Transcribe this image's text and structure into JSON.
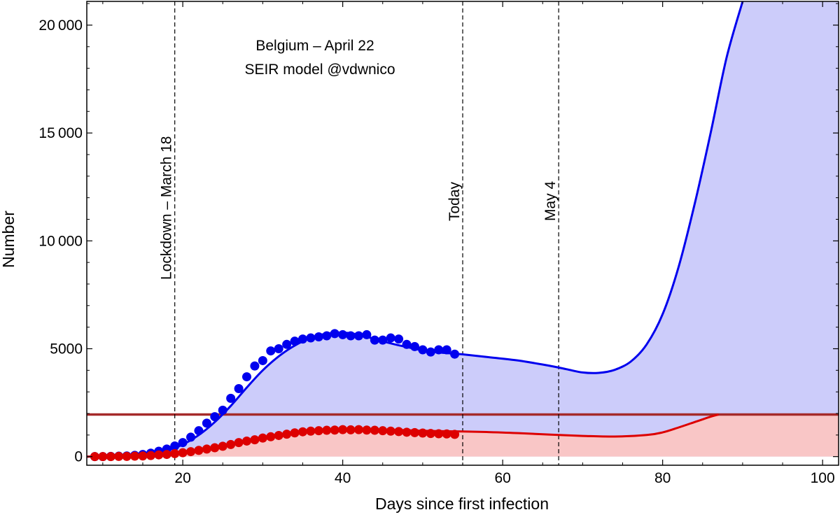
{
  "chart_data": {
    "type": "line",
    "title_lines": [
      "Belgium – April 22",
      "SEIR model @vdwnico"
    ],
    "xlabel": "Days since first infection",
    "ylabel": "Number",
    "xlim": [
      8,
      102
    ],
    "ylim": [
      -400,
      21100
    ],
    "x_ticks": [
      20,
      40,
      60,
      80,
      100
    ],
    "y_ticks": [
      0,
      5000,
      10000,
      15000,
      20000
    ],
    "y_tick_labels": [
      "0",
      "5000",
      "10 000",
      "15 000",
      "20 000"
    ],
    "grid": false,
    "colors": {
      "hospitalized": "#0000ee",
      "hospitalized_fill": "#ccccfa",
      "icu": "#dd0000",
      "icu_fill": "#f9c6c6",
      "capacity_line": "#a52a2a",
      "reference_line": "#000000"
    },
    "reference_lines": [
      {
        "x": 19,
        "label": "Lockdown – March 18"
      },
      {
        "x": 55,
        "label": "Today"
      },
      {
        "x": 67,
        "label": "May 4"
      }
    ],
    "capacity_line": {
      "y": 1950
    },
    "series": [
      {
        "key": "hospitalized",
        "kind": "model",
        "x": [
          8,
          10,
          12,
          14,
          16,
          18,
          20,
          22,
          24,
          26,
          28,
          30,
          32,
          34,
          36,
          38,
          40,
          42,
          44,
          46,
          48,
          50,
          52,
          54,
          55,
          58,
          62,
          66,
          68,
          70,
          72,
          74,
          76,
          78,
          80,
          82,
          84,
          86,
          88,
          90
        ],
        "y": [
          0,
          10,
          30,
          70,
          140,
          280,
          560,
          1000,
          1600,
          2350,
          3200,
          4000,
          4650,
          5150,
          5500,
          5700,
          5750,
          5650,
          5450,
          5250,
          5080,
          4930,
          4830,
          4770,
          4740,
          4620,
          4450,
          4200,
          4050,
          3900,
          3880,
          4020,
          4400,
          5200,
          6600,
          8800,
          11700,
          15000,
          18500,
          21100
        ]
      },
      {
        "key": "hospitalized",
        "kind": "observed",
        "x": [
          9,
          10,
          11,
          12,
          13,
          14,
          15,
          16,
          17,
          18,
          19,
          20,
          21,
          22,
          23,
          24,
          25,
          26,
          27,
          28,
          29,
          30,
          31,
          32,
          33,
          34,
          35,
          36,
          37,
          38,
          39,
          40,
          41,
          42,
          43,
          44,
          45,
          46,
          47,
          48,
          49,
          50,
          51,
          52,
          53,
          54
        ],
        "y": [
          0,
          0,
          10,
          20,
          30,
          60,
          100,
          160,
          250,
          350,
          490,
          650,
          900,
          1200,
          1550,
          1850,
          2150,
          2700,
          3150,
          3700,
          4200,
          4450,
          4900,
          5000,
          5200,
          5350,
          5450,
          5500,
          5550,
          5600,
          5700,
          5650,
          5600,
          5600,
          5650,
          5400,
          5400,
          5500,
          5450,
          5200,
          5100,
          4950,
          4850,
          4950,
          4950,
          4750
        ]
      },
      {
        "key": "icu",
        "kind": "model",
        "x": [
          8,
          10,
          12,
          14,
          16,
          18,
          20,
          22,
          24,
          26,
          28,
          30,
          32,
          34,
          36,
          38,
          40,
          42,
          44,
          46,
          48,
          50,
          52,
          54,
          55,
          58,
          62,
          66,
          70,
          74,
          78,
          80,
          82,
          84,
          86,
          87
        ],
        "y": [
          0,
          5,
          15,
          30,
          60,
          110,
          200,
          320,
          450,
          600,
          760,
          900,
          1020,
          1120,
          1200,
          1250,
          1270,
          1270,
          1260,
          1240,
          1220,
          1200,
          1180,
          1170,
          1165,
          1140,
          1090,
          1020,
          960,
          930,
          1000,
          1120,
          1350,
          1600,
          1850,
          1950
        ]
      },
      {
        "key": "icu",
        "kind": "observed",
        "x": [
          9,
          10,
          11,
          12,
          13,
          14,
          15,
          16,
          17,
          18,
          19,
          20,
          21,
          22,
          23,
          24,
          25,
          26,
          27,
          28,
          29,
          30,
          31,
          32,
          33,
          34,
          35,
          36,
          37,
          38,
          39,
          40,
          41,
          42,
          43,
          44,
          45,
          46,
          47,
          48,
          49,
          50,
          51,
          52,
          53,
          54
        ],
        "y": [
          0,
          0,
          0,
          10,
          10,
          20,
          30,
          50,
          80,
          100,
          140,
          180,
          230,
          290,
          350,
          410,
          480,
          560,
          650,
          720,
          780,
          860,
          920,
          980,
          1040,
          1100,
          1150,
          1180,
          1200,
          1220,
          1230,
          1250,
          1240,
          1250,
          1230,
          1220,
          1200,
          1180,
          1160,
          1130,
          1110,
          1090,
          1070,
          1060,
          1050,
          1030
        ]
      }
    ]
  }
}
